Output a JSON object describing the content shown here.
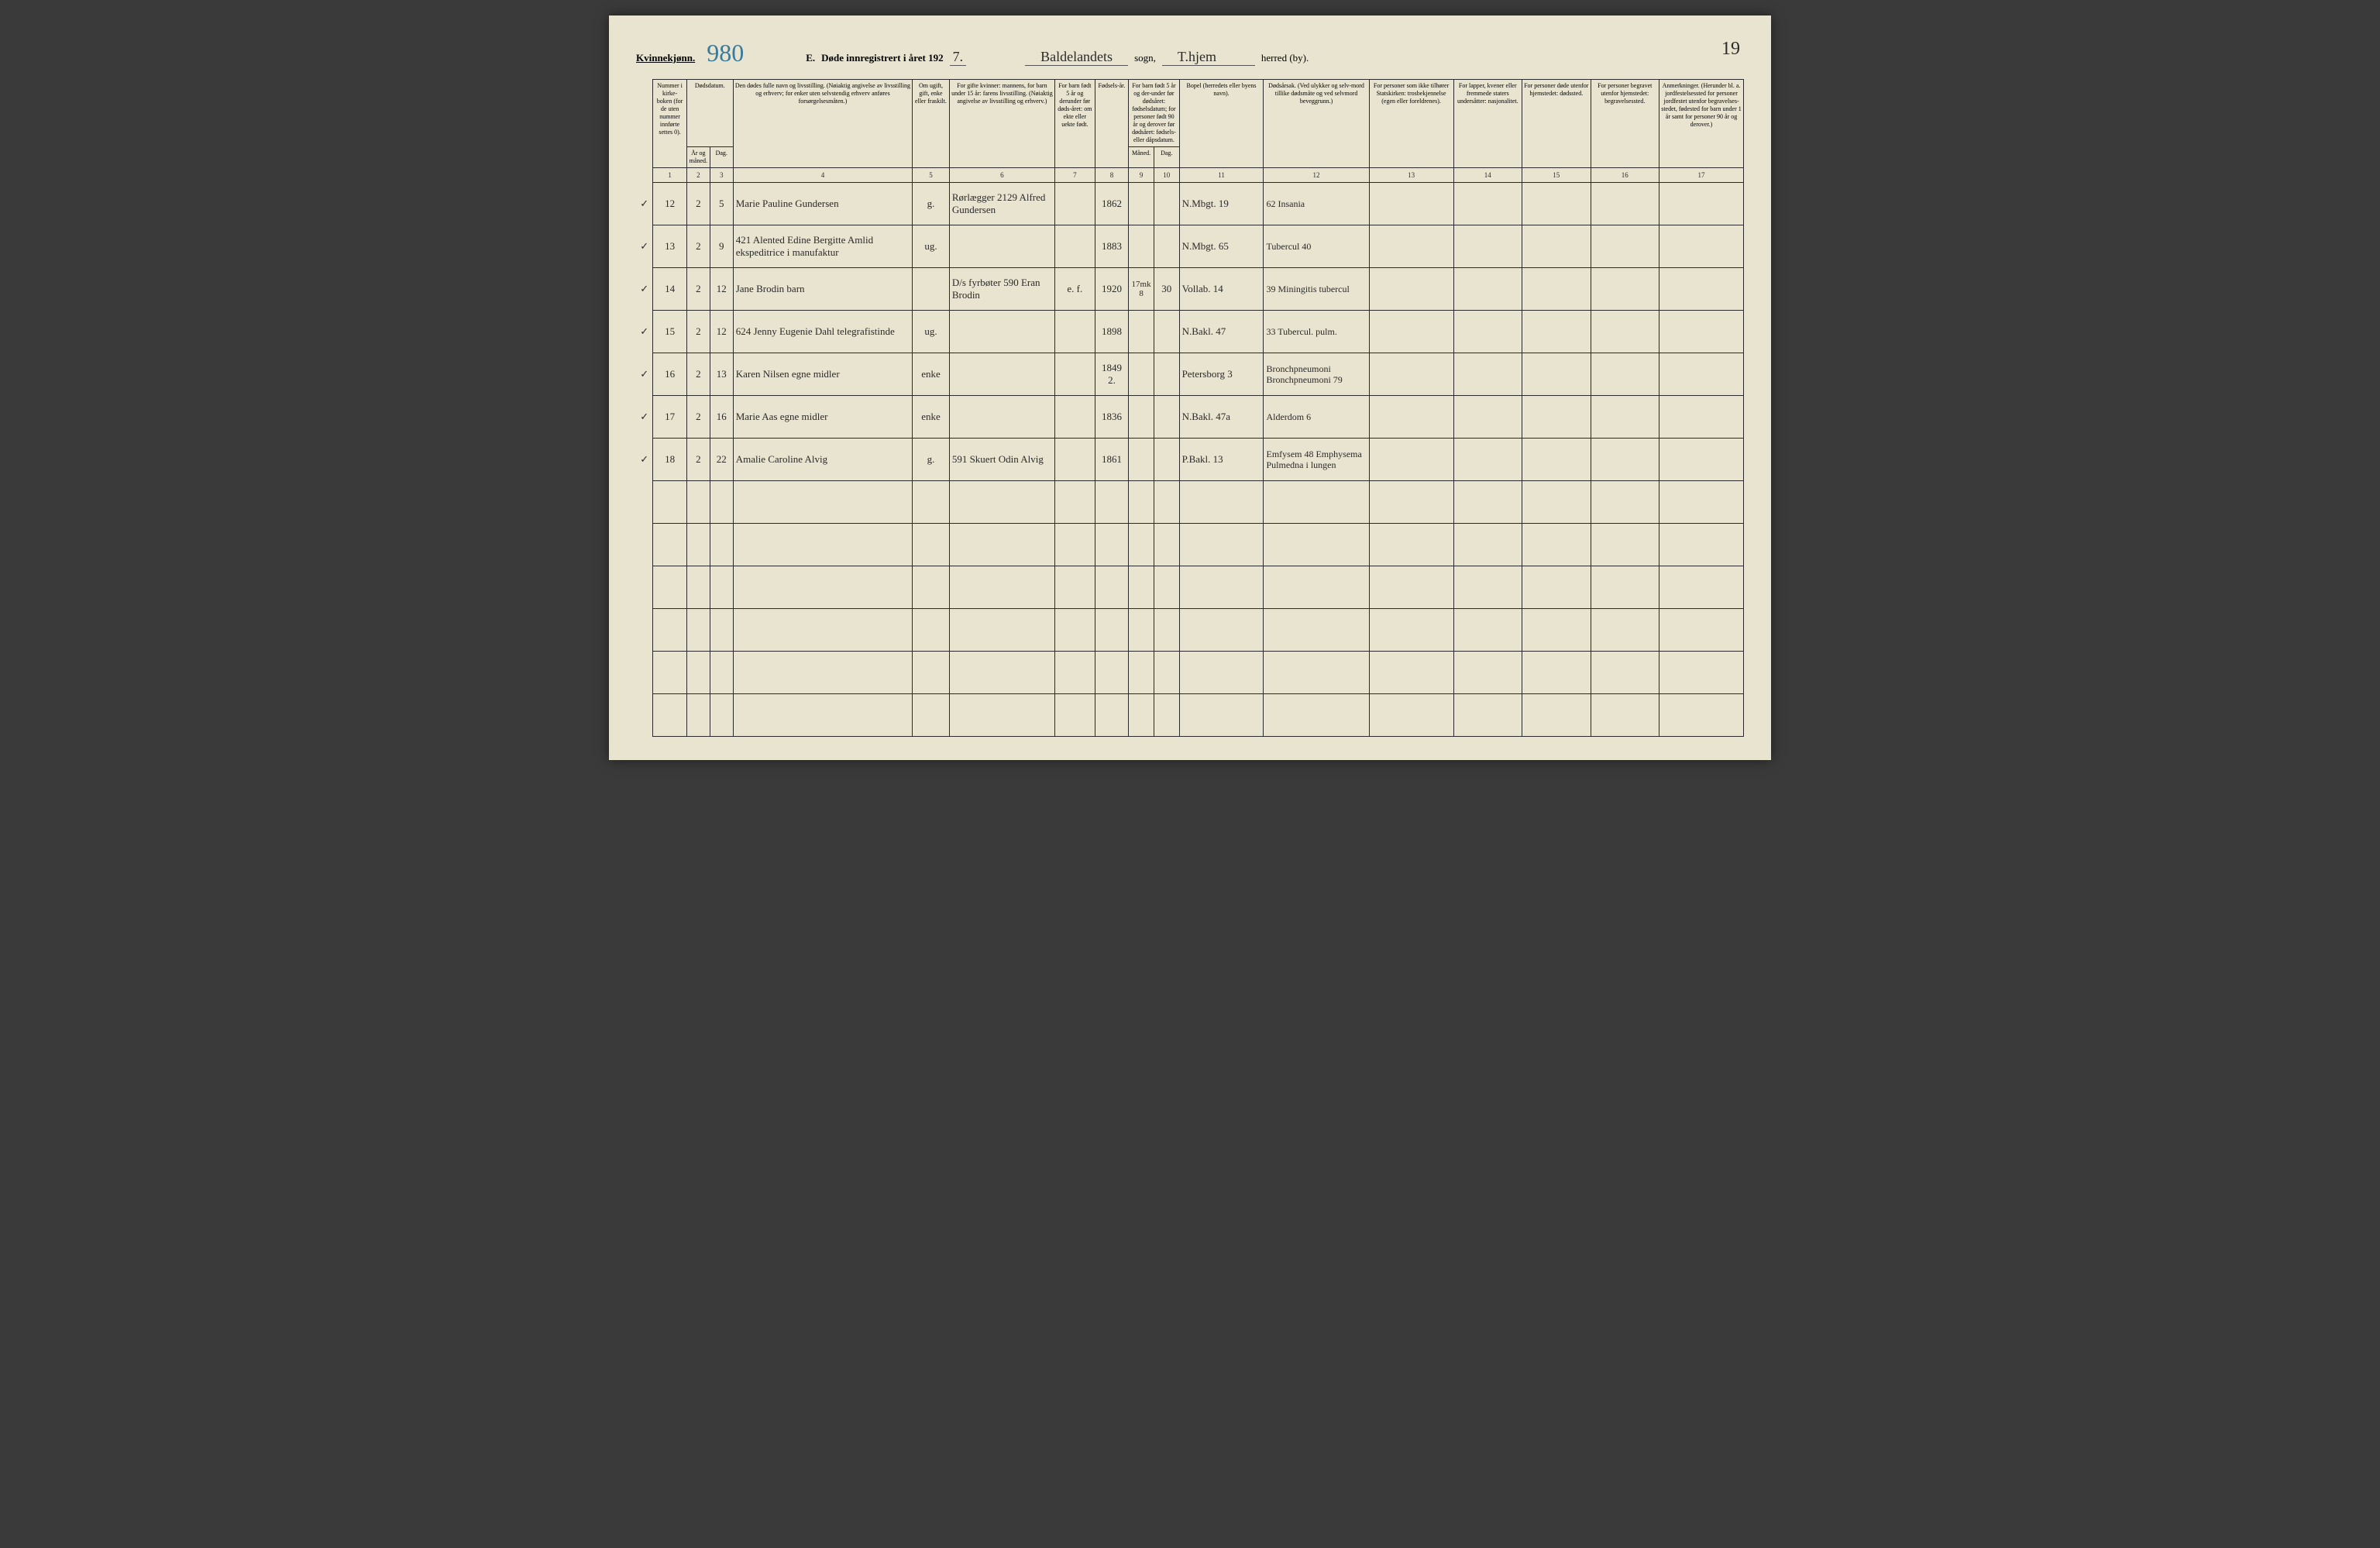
{
  "meta": {
    "gender_label": "Kvinnekjønn.",
    "page_number_hand": "980",
    "form_letter": "E.",
    "title_prefix": "Døde innregistrert i året 192",
    "year_suffix": "7.",
    "sogn_value": "Baldelandets",
    "sogn_label": "sogn,",
    "herred_value": "T.hjem",
    "herred_label": "herred (by).",
    "page_number_right": "19"
  },
  "columns": {
    "c1": "Nummer i kirke-boken (for de uten nummer innførte settes 0).",
    "c2": "Dødsdatum.",
    "c2a": "År og måned.",
    "c2b": "Dag.",
    "c4": "Den dødes fulle navn og livsstilling. (Nøiaktig angivelse av livsstilling og erhverv; for enker uten selvstendig erhverv anføres forsørgelsesmåten.)",
    "c5": "Om ugift, gift, enke eller fraskilt.",
    "c6": "For gifte kvinner: mannens, for barn under 15 år: farens livsstilling. (Nøiaktig angivelse av livsstilling og erhverv.)",
    "c7": "For barn født 5 år og derunder før døds-året: om ekte eller uekte født.",
    "c8": "Fødsels-år.",
    "c9": "For barn født 5 år og der-under før dødsåret: fødselsdatum; for personer født 90 år og derover før dødsåret: fødsels- eller dåpsdatum.",
    "c9a": "Måned.",
    "c9b": "Dag.",
    "c11": "Bopel (herredets eller byens navn).",
    "c12": "Dødsårsak. (Ved ulykker og selv-mord tillike dødsmåte og ved selvmord beveggrunn.)",
    "c13": "For personer som ikke tilhører Statskirken: trosbekjennelse (egen eller foreldrenes).",
    "c14": "For lapper, kvener eller fremmede staters undersåtter: nasjonalitet.",
    "c15": "For personer døde utenfor hjemstedet: dødssted.",
    "c16": "For personer begravet utenfor hjemstedet: begravelsessted.",
    "c17": "Anmerkninger. (Herunder bl. a. jordfestelsessted for personer jordfestet utenfor begravelses-stedet, fødested for barn under 1 år samt for personer 90 år og derover.)"
  },
  "col_nums": [
    "1",
    "2",
    "3",
    "4",
    "5",
    "6",
    "7",
    "8",
    "9",
    "10",
    "11",
    "12",
    "13",
    "14",
    "15",
    "16",
    "17"
  ],
  "rows": [
    {
      "check": "✓",
      "num": "12",
      "year": "2",
      "day": "5",
      "name": "Marie Pauline Gundersen",
      "status": "g.",
      "spouse": "Rørlægger  2129  Alfred Gundersen",
      "birth_year": "1862",
      "residence": "N.Mbgt. 19",
      "cause": "62  Insania"
    },
    {
      "check": "✓",
      "num": "13",
      "year": "2",
      "day": "9",
      "name": "421  Alented  Edine Bergitte Amlid  ekspeditrice i manufaktur",
      "status": "ug.",
      "spouse": "",
      "birth_year": "1883",
      "residence": "N.Mbgt. 65",
      "cause": "Tubercul 40"
    },
    {
      "check": "✓",
      "num": "14",
      "year": "2",
      "day": "12",
      "name": "Jane Brodin  barn",
      "status": "",
      "spouse": "D/s fyrbøter 590  Eran Brodin",
      "ekte": "e. f.",
      "birth_year": "1920",
      "month": "8",
      "dag": "30",
      "month_note": "17mk",
      "residence": "Vollab. 14",
      "cause": "39  Miningitis  tubercul"
    },
    {
      "check": "✓",
      "num": "15",
      "year": "2",
      "day": "12",
      "name": "624  Jenny Eugenie Dahl  telegrafistinde",
      "status": "ug.",
      "spouse": "",
      "birth_year": "1898",
      "residence": "N.Bakl. 47",
      "cause": "33  Tubercul. pulm."
    },
    {
      "check": "✓",
      "num": "16",
      "year": "2",
      "day": "13",
      "name": "Karen Nilsen  egne midler",
      "status": "enke",
      "spouse": "",
      "birth_year": "1849",
      "birth_note": "2.",
      "residence": "Petersborg 3",
      "cause": "Bronchpneumoni  Bronchpneumoni  79"
    },
    {
      "check": "✓",
      "num": "17",
      "year": "2",
      "day": "16",
      "name": "Marie Aas  egne midler",
      "status": "enke",
      "spouse": "",
      "birth_year": "1836",
      "residence": "N.Bakl. 47a",
      "cause": "Alderdom  6"
    },
    {
      "check": "✓",
      "num": "18",
      "year": "2",
      "day": "22",
      "name": "Amalie Caroline Alvig",
      "status": "g.",
      "spouse": "591  Skuert Odin Alvig",
      "birth_year": "1861",
      "residence": "P.Bakl. 13",
      "cause": "Emfysem 48  Emphysema  Pulmedna  i lungen"
    }
  ],
  "widths": {
    "c1": "3.2%",
    "c2": "2.2%",
    "c3": "2.2%",
    "c4": "17%",
    "c5": "3.5%",
    "c6": "10%",
    "c7": "3.8%",
    "c8": "3.2%",
    "c9": "2.4%",
    "c10": "2.4%",
    "c11": "8%",
    "c12": "10%",
    "c13": "8%",
    "c14": "6.5%",
    "c15": "6.5%",
    "c16": "6.5%",
    "c17": "8%"
  },
  "colors": {
    "paper": "#e8e4d0",
    "ink": "#2a2a2a",
    "blue_hand": "#3a7a9a",
    "pencil": "#888888",
    "bg": "#3a3a3a"
  }
}
